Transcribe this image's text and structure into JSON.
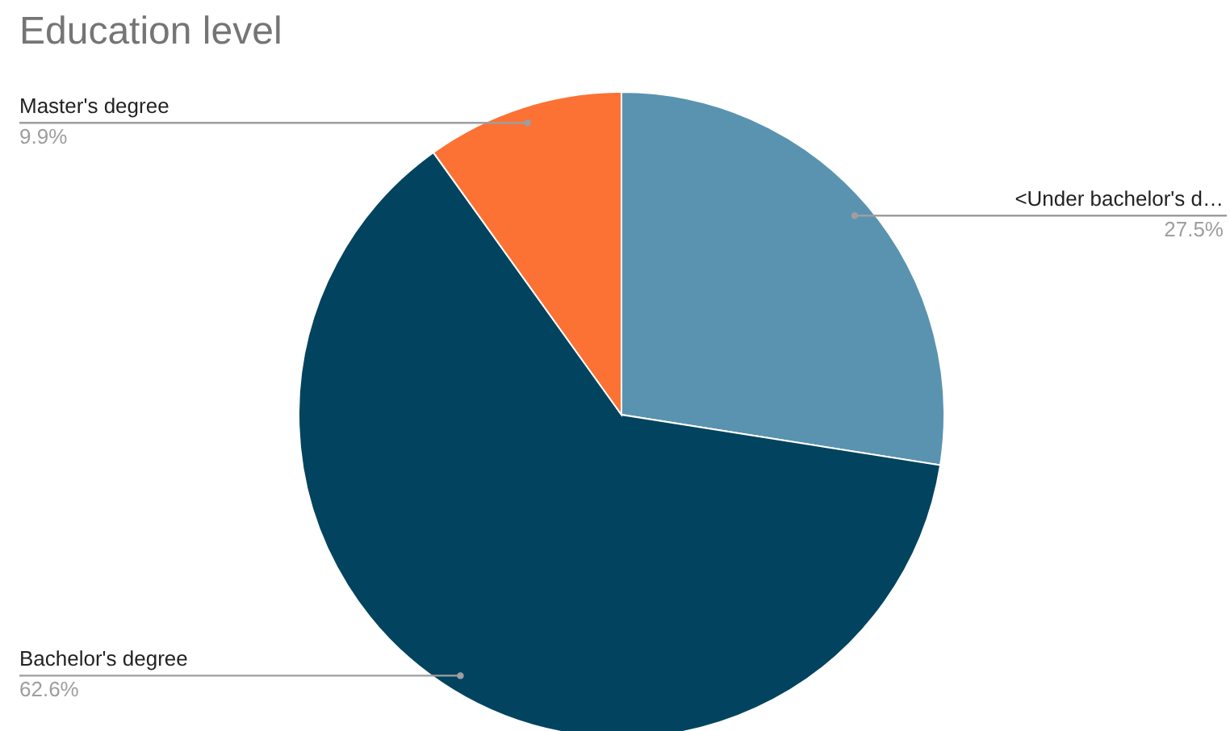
{
  "chart_data": {
    "type": "pie",
    "title": "Education level",
    "categories": [
      "<Under bachelor's d…",
      "Bachelor's degree",
      "Master's degree"
    ],
    "values": [
      27.5,
      62.6,
      9.9
    ],
    "colors": [
      "#5a93b0",
      "#02445f",
      "#fb7234"
    ],
    "value_labels": [
      "27.5%",
      "62.6%",
      "9.9%"
    ],
    "legend": false
  }
}
